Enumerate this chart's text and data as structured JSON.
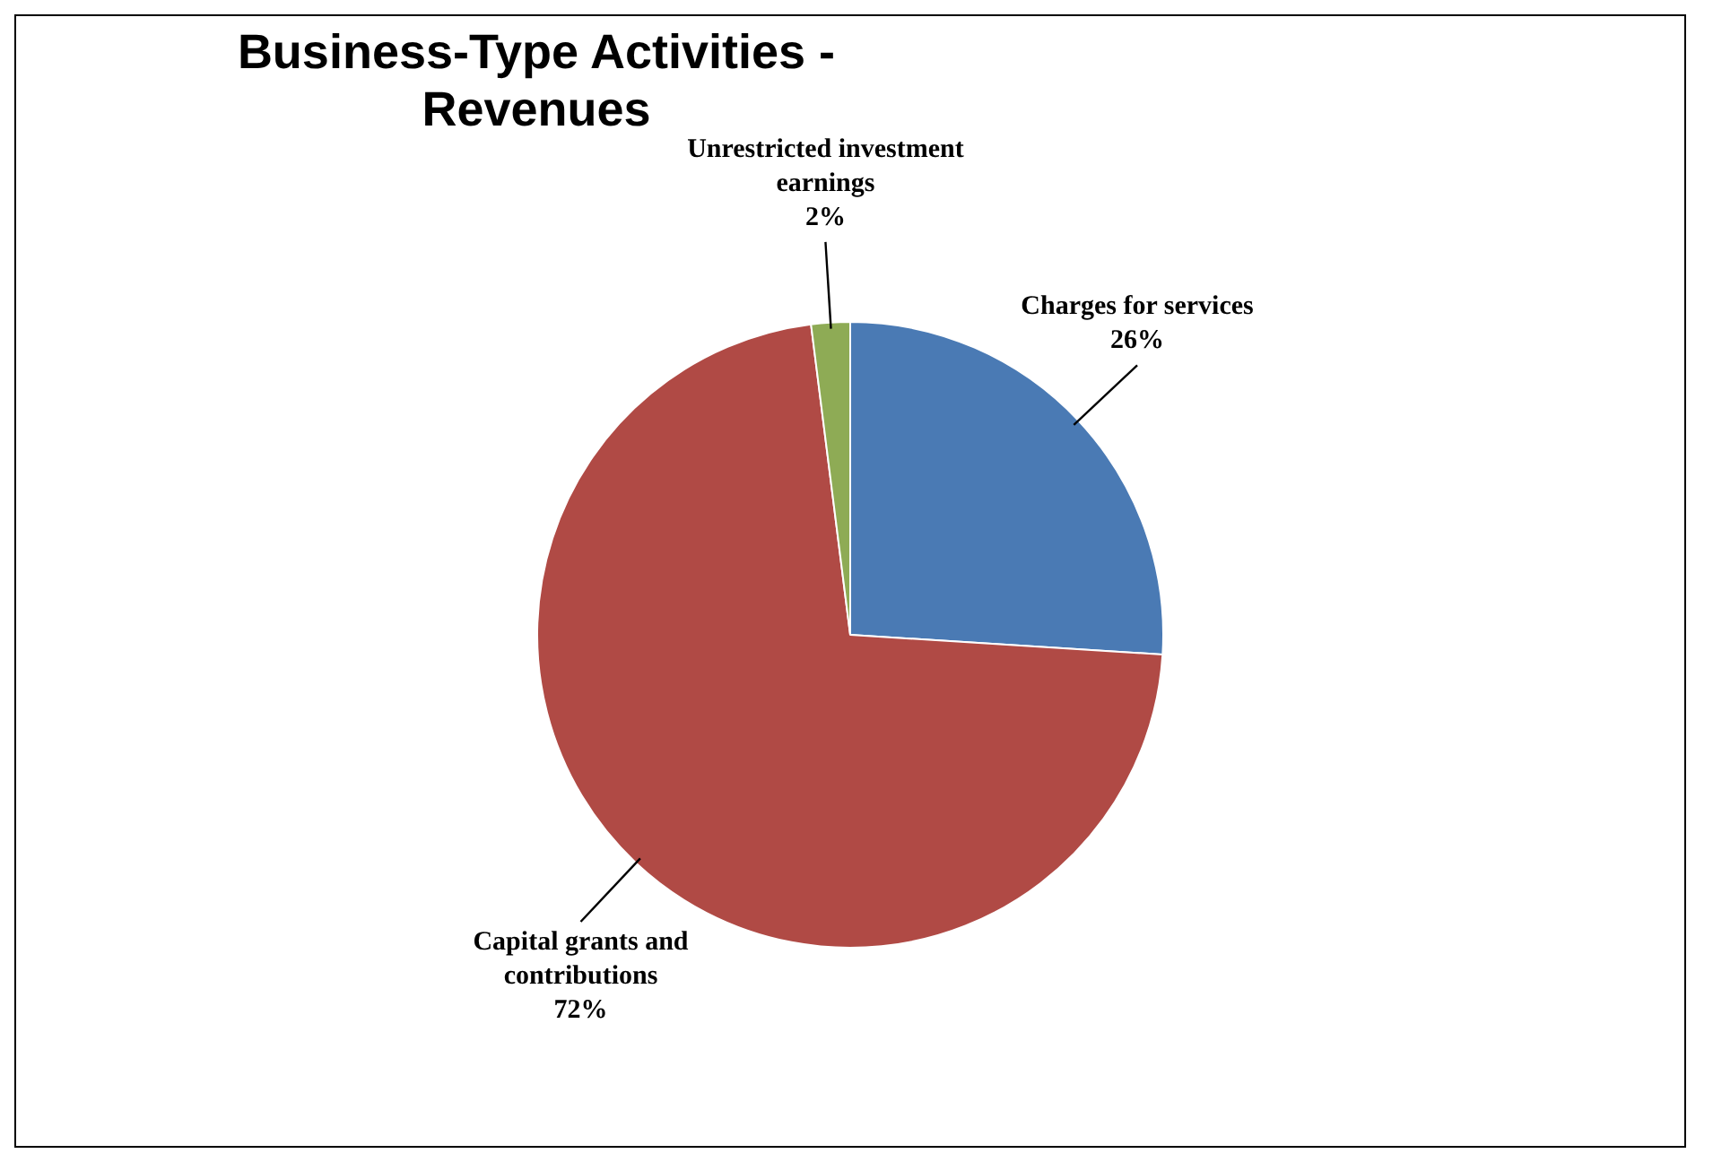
{
  "chart_data": {
    "type": "pie",
    "title": "Business-Type Activities - Revenues",
    "categories": [
      "Charges for services",
      "Capital grants and contributions",
      "Unrestricted investment earnings"
    ],
    "values": [
      26,
      72,
      2
    ],
    "colors": [
      "#4a7ab4",
      "#b04a45",
      "#8eab55"
    ],
    "value_labels": [
      "26%",
      "72%",
      "2%"
    ],
    "legend": false
  }
}
